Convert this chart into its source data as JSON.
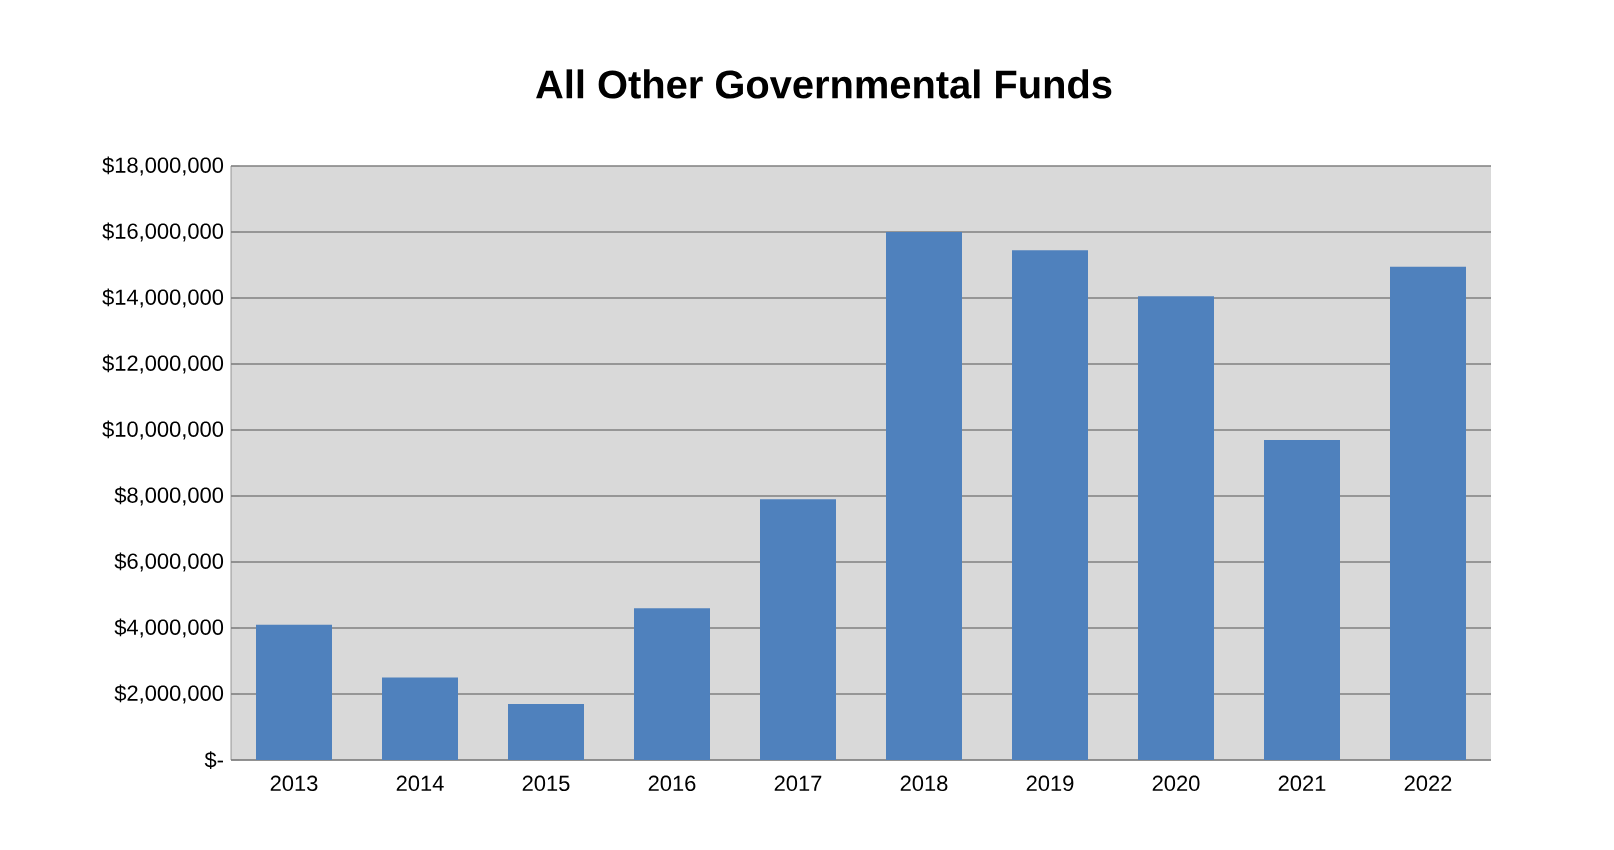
{
  "chart_data": {
    "type": "bar",
    "title": "All Other Governmental Funds",
    "categories": [
      "2013",
      "2014",
      "2015",
      "2016",
      "2017",
      "2018",
      "2019",
      "2020",
      "2021",
      "2022"
    ],
    "values": [
      4100000,
      2500000,
      1700000,
      4600000,
      7900000,
      16000000,
      15450000,
      14050000,
      9700000,
      14950000
    ],
    "color": "#4f81bd",
    "ylim": [
      0,
      18000000
    ],
    "yticks": [
      {
        "value": 0,
        "label": "$-"
      },
      {
        "value": 2000000,
        "label": "$2,000,000"
      },
      {
        "value": 4000000,
        "label": "$4,000,000"
      },
      {
        "value": 6000000,
        "label": "$6,000,000"
      },
      {
        "value": 8000000,
        "label": "$8,000,000"
      },
      {
        "value": 10000000,
        "label": "$10,000,000"
      },
      {
        "value": 12000000,
        "label": "$12,000,000"
      },
      {
        "value": 14000000,
        "label": "$14,000,000"
      },
      {
        "value": 16000000,
        "label": "$16,000,000"
      },
      {
        "value": 18000000,
        "label": "$18,000,000"
      }
    ],
    "grid": "y"
  }
}
